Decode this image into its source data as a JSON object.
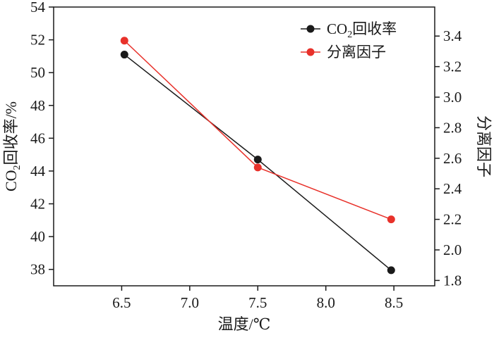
{
  "chart_data": {
    "type": "line",
    "x": [
      6.52,
      7.5,
      8.48
    ],
    "xlim": [
      6.0,
      8.8
    ],
    "xticks": [
      6.5,
      7.0,
      7.5,
      8.0,
      8.5
    ],
    "xtick_labels": [
      "6.5",
      "7.0",
      "7.5",
      "8.0",
      "8.5"
    ],
    "xlabel": "温度/℃",
    "y_left": {
      "label_main": "CO",
      "label_sub": "2",
      "label_rest": "回收率/%",
      "lim": [
        37,
        54
      ],
      "ticks": [
        38,
        40,
        42,
        44,
        46,
        48,
        50,
        52,
        54
      ],
      "tick_labels": [
        "38",
        "40",
        "42",
        "44",
        "46",
        "48",
        "50",
        "52",
        "54"
      ]
    },
    "y_right": {
      "label": "分离因子",
      "lim": [
        1.765,
        3.59
      ],
      "ticks": [
        1.8,
        2.0,
        2.2,
        2.4,
        2.6,
        2.8,
        3.0,
        3.2,
        3.4
      ],
      "tick_labels": [
        "1.8",
        "2.0",
        "2.2",
        "2.4",
        "2.6",
        "2.8",
        "3.0",
        "3.2",
        "3.4"
      ]
    },
    "series": [
      {
        "name_main": "CO",
        "name_sub": "2",
        "name_rest": "回收率",
        "axis": "left",
        "color": "#1a1a1a",
        "values": [
          51.1,
          44.7,
          37.95
        ]
      },
      {
        "name": "分离因子",
        "axis": "right",
        "color": "#e8312a",
        "values": [
          3.37,
          2.54,
          2.2
        ]
      }
    ],
    "legend_position": "top-right",
    "grid": false
  }
}
